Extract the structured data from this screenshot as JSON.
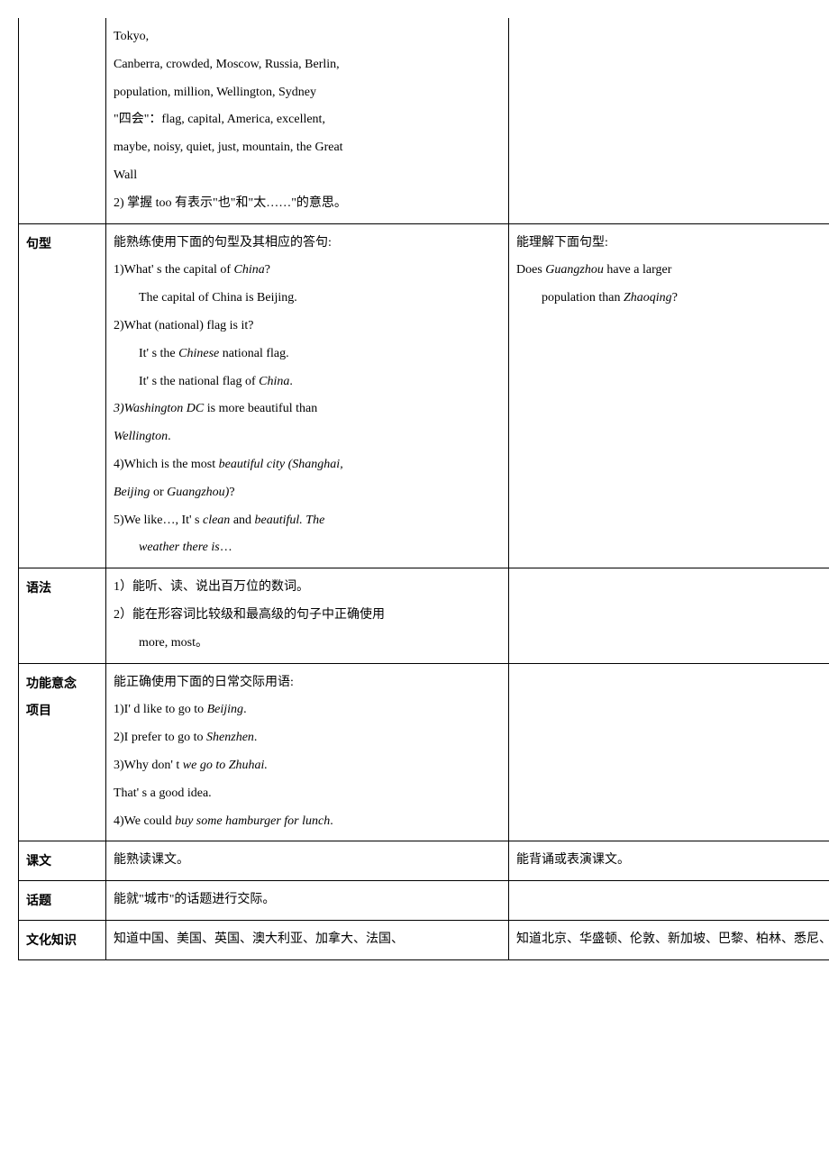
{
  "rows": [
    {
      "label": "",
      "col2_lines": [
        {
          "text": "Tokyo,"
        },
        {
          "text": "Canberra, crowded, Moscow, Russia, Berlin,"
        },
        {
          "text": "population, million, Wellington, Sydney"
        },
        {
          "text": "\"四会\"：flag, capital, America, excellent,"
        },
        {
          "text": "maybe, noisy, quiet, just, mountain, the Great"
        },
        {
          "text": "Wall"
        },
        {
          "text": "2) 掌握 too 有表示\"也\"和\"太……\"的意思。"
        }
      ],
      "col3_lines": []
    },
    {
      "label": "句型",
      "col2_lines": [
        {
          "text": "能熟练使用下面的句型及其相应的答句:"
        },
        {
          "parts": [
            {
              "t": "1)What' s the capital of "
            },
            {
              "t": "China",
              "i": true
            },
            {
              "t": "?"
            }
          ]
        },
        {
          "text": " The capital of China is Beijing.",
          "indent": true
        },
        {
          "text": "2)What (national) flag is it?"
        },
        {
          "parts": [
            {
              "t": " It' s the "
            },
            {
              "t": "Chinese",
              "i": true
            },
            {
              "t": " national flag."
            }
          ],
          "indent": true
        },
        {
          "parts": [
            {
              "t": " It' s the national flag of "
            },
            {
              "t": "China",
              "i": true
            },
            {
              "t": "."
            }
          ],
          "indent": true
        },
        {
          "parts": [
            {
              "t": "3)",
              "i": true
            },
            {
              "t": "Washington DC",
              "i": true
            },
            {
              "t": " is more beautiful than"
            }
          ]
        },
        {
          "parts": [
            {
              "t": "Wellington",
              "i": true
            },
            {
              "t": "."
            }
          ]
        },
        {
          "parts": [
            {
              "t": "4)Which is the most "
            },
            {
              "t": "beautiful city (Shanghai,",
              "i": true
            }
          ]
        },
        {
          "parts": [
            {
              "t": "Beijing",
              "i": true
            },
            {
              "t": " or "
            },
            {
              "t": "Guangzhou)",
              "i": true
            },
            {
              "t": "?"
            }
          ]
        },
        {
          "parts": [
            {
              "t": "5)We like…, It' s "
            },
            {
              "t": "clean",
              "i": true
            },
            {
              "t": " and "
            },
            {
              "t": "beautiful. The",
              "i": true
            }
          ]
        },
        {
          "parts": [
            {
              "t": "weather there is",
              "i": true
            },
            {
              "t": "…"
            }
          ],
          "indent": true
        }
      ],
      "col3_lines": [
        {
          "text": "能理解下面句型:"
        },
        {
          "parts": [
            {
              "t": "Does "
            },
            {
              "t": "Guangzhou",
              "i": true
            },
            {
              "t": " have a larger"
            }
          ]
        },
        {
          "parts": [
            {
              "t": " population than  "
            },
            {
              "t": "Zhaoqing",
              "i": true
            },
            {
              "t": "?"
            }
          ],
          "indent": true
        }
      ]
    },
    {
      "label": "语法",
      "col2_lines": [
        {
          "text": "1）能听、读、说出百万位的数词。"
        },
        {
          "text": "2）能在形容词比较级和最高级的句子中正确使用"
        },
        {
          "text": "more, most。",
          "indent": true
        }
      ],
      "col3_lines": []
    },
    {
      "label": "功能意念项目",
      "label_lines": [
        "功能意念",
        "项目"
      ],
      "col2_lines": [
        {
          "text": "能正确使用下面的日常交际用语:"
        },
        {
          "parts": [
            {
              "t": "1)I' d like to go to "
            },
            {
              "t": "Beijing",
              "i": true
            },
            {
              "t": "."
            }
          ]
        },
        {
          "parts": [
            {
              "t": "2)I prefer to go to "
            },
            {
              "t": "Shenzhen",
              "i": true
            },
            {
              "t": "."
            }
          ]
        },
        {
          "parts": [
            {
              "t": "3)Why don' t "
            },
            {
              "t": "we go to Zhuhai.",
              "i": true
            }
          ]
        },
        {
          "text": "That' s a good idea."
        },
        {
          "parts": [
            {
              "t": "4)We could "
            },
            {
              "t": "buy some hamburger for lunch",
              "i": true
            },
            {
              "t": "."
            }
          ]
        }
      ],
      "col3_lines": []
    },
    {
      "label": "课文",
      "col2_lines": [
        {
          "text": "能熟读课文。"
        }
      ],
      "col3_lines": [
        {
          "text": "能背诵或表演课文。"
        }
      ]
    },
    {
      "label": "话题",
      "col2_lines": [
        {
          "text": "能就\"城市\"的话题进行交际。"
        }
      ],
      "col3_lines": []
    },
    {
      "label": "文化知识",
      "col2_lines": [
        {
          "text": "知道中国、美国、英国、澳大利亚、加拿大、法国、"
        }
      ],
      "col3_lines": [
        {
          "text": "知道北京、华盛顿、伦敦、新加坡、巴黎、柏林、悉尼、"
        }
      ]
    }
  ]
}
